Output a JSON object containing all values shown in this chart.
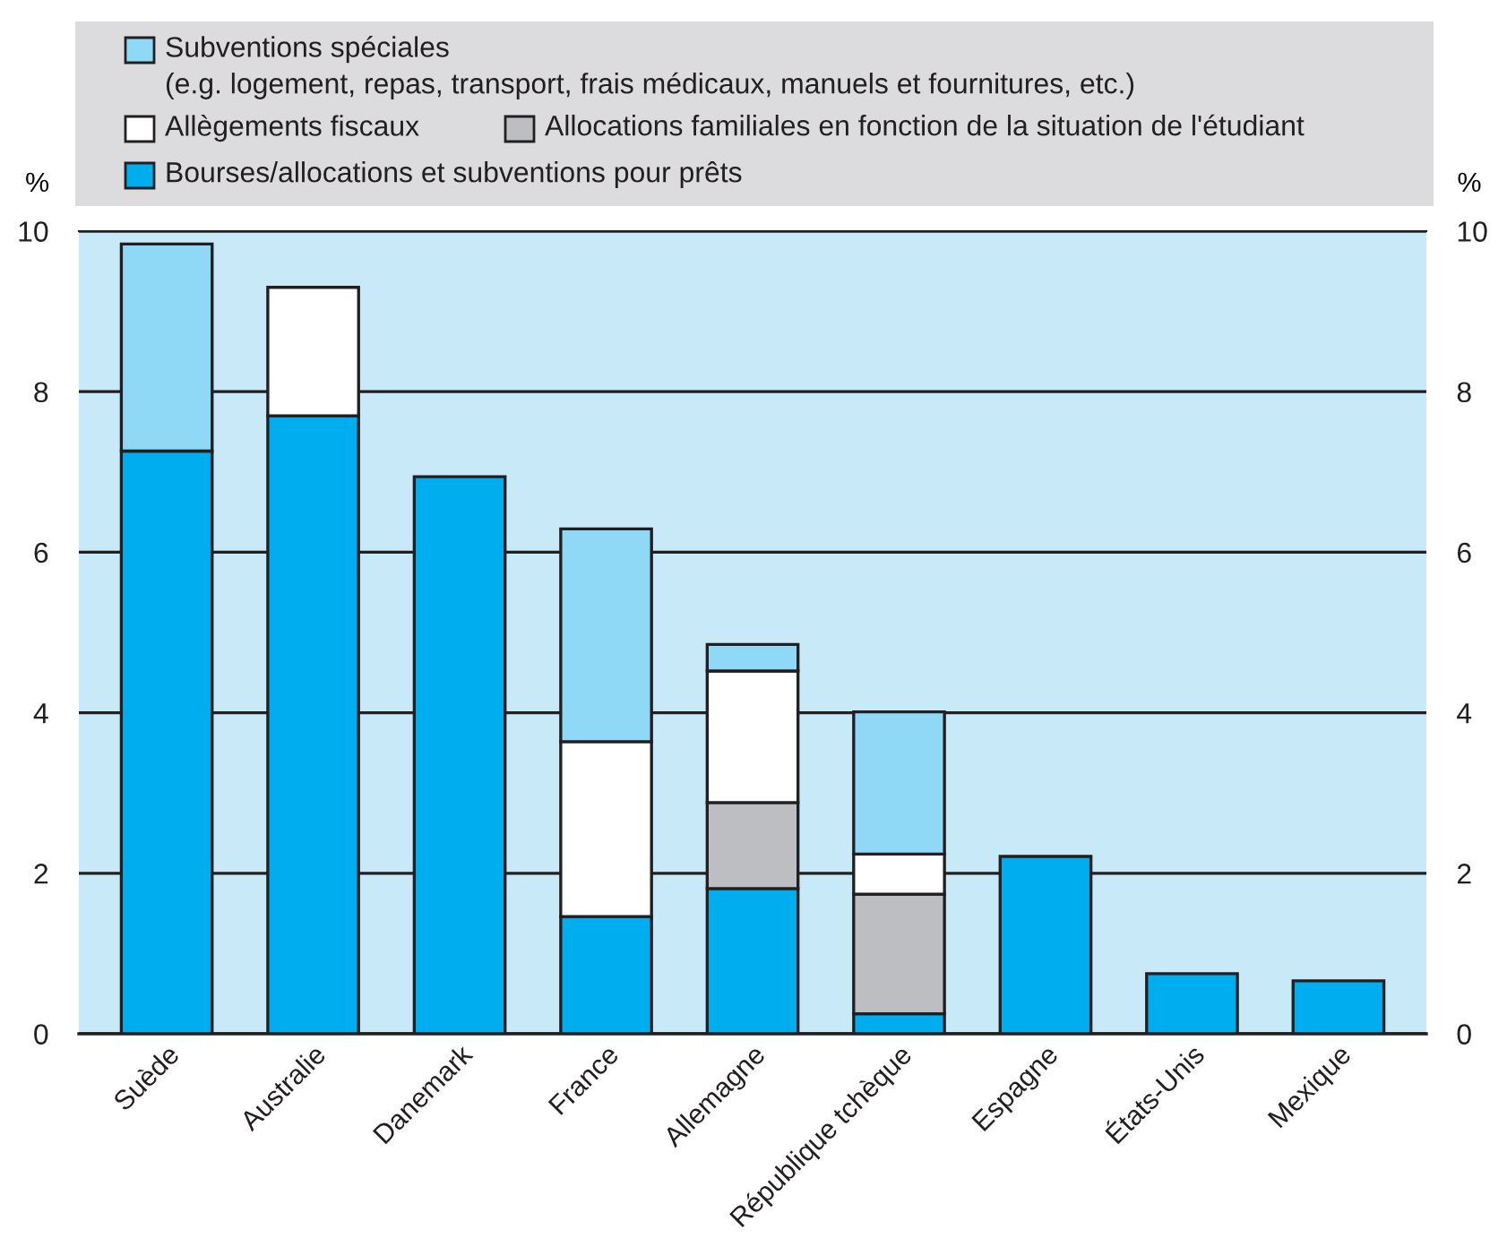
{
  "chart_data": {
    "type": "bar",
    "stacked": true,
    "categories": [
      "Suède",
      "Australie",
      "Danemark",
      "France",
      "Allemagne",
      "République tchèque",
      "Espagne",
      "États-Unis",
      "Mexique"
    ],
    "series": [
      {
        "name": "Bourses/allocations et subventions pour prêts",
        "color": "#00aeef",
        "values": [
          7.26,
          7.7,
          6.94,
          1.46,
          1.81,
          0.25,
          2.21,
          0.75,
          0.66
        ]
      },
      {
        "name": "Allocations familiales en fonction de la situation de l'étudiant",
        "color": "#bdbec2",
        "values": [
          null,
          null,
          null,
          null,
          1.07,
          1.49,
          null,
          null,
          null
        ]
      },
      {
        "name": "Allègements fiscaux",
        "color": "#ffffff",
        "values": [
          null,
          1.6,
          null,
          2.18,
          1.64,
          0.5,
          null,
          null,
          null
        ]
      },
      {
        "name": "Subventions spéciales\n(e.g. logement, repas, transport, frais médicaux, manuels et fournitures, etc.)",
        "color": "#8fd8f6",
        "values": [
          2.58,
          null,
          null,
          2.65,
          0.33,
          1.77,
          null,
          null,
          null
        ]
      }
    ],
    "ylabel": "%",
    "y2label": "%",
    "ylim": [
      0,
      10
    ],
    "yticks": [
      0,
      2,
      4,
      6,
      8,
      10
    ],
    "y2lim": [
      0,
      10
    ],
    "y2ticks": [
      0,
      2,
      4,
      6,
      8,
      10
    ],
    "grid": "y",
    "legend": "top"
  }
}
